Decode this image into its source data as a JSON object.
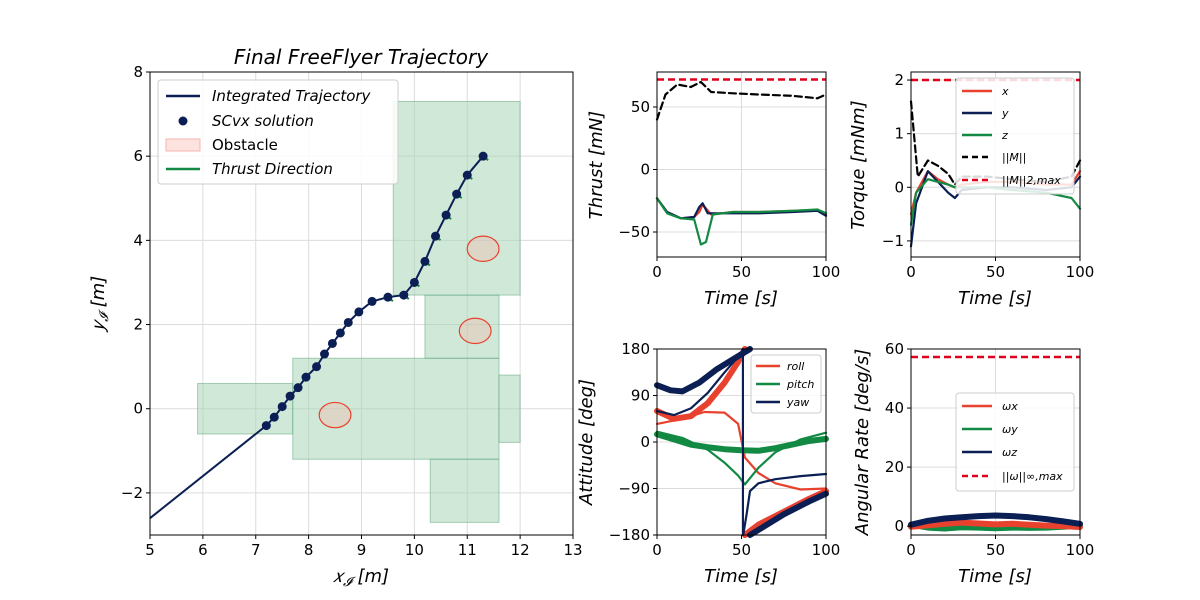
{
  "colors": {
    "navy": "#0b1f54",
    "red": "#e8412d",
    "green": "#138a43",
    "limit": "#e0001b",
    "black": "#000000",
    "obstacle_fill": "#a8d5b8",
    "obstacle_edge": "#5aa47a",
    "ellipse": "#e8412d"
  },
  "chart_data": [
    {
      "id": "trajectory",
      "type": "scatter",
      "title": "Final FreeFlyer Trajectory",
      "xlabel": "x_I [m]",
      "ylabel": "y_I [m]",
      "xlim": [
        5,
        13
      ],
      "ylim": [
        -3,
        8
      ],
      "xticks": [
        "5",
        "6",
        "7",
        "8",
        "9",
        "10",
        "11",
        "12",
        "13"
      ],
      "yticks": [
        "−2",
        "0",
        "2",
        "4",
        "6",
        "8"
      ],
      "grid": true,
      "legend": {
        "placement": "top-left",
        "entries": [
          "Integrated Trajectory",
          "SCvx solution",
          "Obstacle",
          "Thrust Direction"
        ]
      },
      "obstacles": [
        [
          5.9,
          7.7,
          -0.6,
          0.6
        ],
        [
          7.7,
          11.6,
          -1.2,
          1.2
        ],
        [
          10.3,
          11.6,
          -2.7,
          -1.2
        ],
        [
          10.2,
          11.6,
          1.2,
          2.7
        ],
        [
          9.6,
          12.0,
          2.7,
          7.3
        ],
        [
          11.6,
          12.0,
          -0.8,
          0.8
        ]
      ],
      "ellipses": [
        [
          8.5,
          -0.15,
          0.3,
          0.3
        ],
        [
          11.15,
          1.85,
          0.3,
          0.3
        ],
        [
          11.3,
          3.8,
          0.3,
          0.3
        ]
      ],
      "line": [
        [
          5.0,
          -2.6
        ],
        [
          7.2,
          -0.4
        ]
      ],
      "points": [
        [
          7.2,
          -0.4
        ],
        [
          7.35,
          -0.2
        ],
        [
          7.5,
          0.05
        ],
        [
          7.65,
          0.3
        ],
        [
          7.8,
          0.5
        ],
        [
          7.95,
          0.75
        ],
        [
          8.15,
          1.0
        ],
        [
          8.3,
          1.3
        ],
        [
          8.45,
          1.55
        ],
        [
          8.6,
          1.8
        ],
        [
          8.75,
          2.05
        ],
        [
          8.95,
          2.3
        ],
        [
          9.2,
          2.55
        ],
        [
          9.5,
          2.65
        ],
        [
          9.8,
          2.7
        ],
        [
          10.0,
          3.0
        ],
        [
          10.2,
          3.5
        ],
        [
          10.4,
          4.1
        ],
        [
          10.6,
          4.6
        ],
        [
          10.8,
          5.1
        ],
        [
          11.0,
          5.55
        ],
        [
          11.3,
          6.0
        ]
      ]
    },
    {
      "id": "thrust",
      "type": "line",
      "xlabel": "Time [s]",
      "ylabel": "Thrust [mN]",
      "xlim": [
        0,
        100
      ],
      "ylim": [
        -70,
        78
      ],
      "xticks": [
        "0",
        "50",
        "100"
      ],
      "yticks": [
        "−50",
        "0",
        "50"
      ],
      "grid": true,
      "limit": 72,
      "series": [
        {
          "style": "black-dashed",
          "points": [
            [
              0,
              40
            ],
            [
              5,
              60
            ],
            [
              12,
              68
            ],
            [
              20,
              66
            ],
            [
              26,
              70
            ],
            [
              32,
              62
            ],
            [
              45,
              61
            ],
            [
              60,
              60
            ],
            [
              80,
              59
            ],
            [
              95,
              57
            ],
            [
              100,
              60
            ]
          ]
        },
        {
          "style": "red",
          "points": [
            [
              0,
              -23
            ],
            [
              6,
              -34
            ],
            [
              14,
              -39
            ],
            [
              22,
              -38
            ],
            [
              25,
              -34
            ],
            [
              27,
              -28
            ],
            [
              32,
              -36
            ],
            [
              45,
              -34
            ],
            [
              60,
              -34
            ],
            [
              80,
              -33
            ],
            [
              95,
              -33
            ],
            [
              100,
              -36
            ]
          ]
        },
        {
          "style": "navy",
          "points": [
            [
              0,
              -23
            ],
            [
              6,
              -34
            ],
            [
              14,
              -39
            ],
            [
              22,
              -38
            ],
            [
              25,
              -30
            ],
            [
              27,
              -27
            ],
            [
              30,
              -35
            ],
            [
              45,
              -35
            ],
            [
              60,
              -35
            ],
            [
              80,
              -34
            ],
            [
              95,
              -33
            ],
            [
              100,
              -37
            ]
          ]
        },
        {
          "style": "green",
          "points": [
            [
              0,
              -23
            ],
            [
              6,
              -35
            ],
            [
              14,
              -39
            ],
            [
              22,
              -40
            ],
            [
              26,
              -60
            ],
            [
              29,
              -58
            ],
            [
              33,
              -36
            ],
            [
              45,
              -34
            ],
            [
              60,
              -34
            ],
            [
              80,
              -33
            ],
            [
              95,
              -32
            ],
            [
              100,
              -35
            ]
          ]
        }
      ]
    },
    {
      "id": "torque",
      "type": "line",
      "xlabel": "Time [s]",
      "ylabel": "Torque [mNm]",
      "xlim": [
        0,
        100
      ],
      "ylim": [
        -1.3,
        2.15
      ],
      "xticks": [
        "0",
        "50",
        "100"
      ],
      "yticks": [
        "−1",
        "0",
        "1",
        "2"
      ],
      "grid": true,
      "limit": 2.0,
      "legend": {
        "placement": "top-right",
        "entries": [
          "x",
          "y",
          "z",
          "||M||",
          "||M||2,max"
        ]
      },
      "series": [
        {
          "style": "black-dashed",
          "points": [
            [
              0,
              1.6
            ],
            [
              4,
              0.2
            ],
            [
              10,
              0.5
            ],
            [
              16,
              0.4
            ],
            [
              22,
              0.25
            ],
            [
              26,
              0.05
            ],
            [
              30,
              0.2
            ],
            [
              45,
              0.2
            ],
            [
              60,
              0.15
            ],
            [
              80,
              0.1
            ],
            [
              95,
              0.2
            ],
            [
              100,
              0.5
            ]
          ]
        },
        {
          "style": "red",
          "points": [
            [
              0,
              -0.5
            ],
            [
              3,
              -0.1
            ],
            [
              10,
              0.3
            ],
            [
              16,
              0.15
            ],
            [
              22,
              0.05
            ],
            [
              26,
              0.0
            ],
            [
              30,
              0.05
            ],
            [
              45,
              0.1
            ],
            [
              60,
              0.1
            ],
            [
              80,
              0.05
            ],
            [
              95,
              0.05
            ],
            [
              100,
              0.3
            ]
          ]
        },
        {
          "style": "navy",
          "points": [
            [
              0,
              -1.1
            ],
            [
              3,
              -0.3
            ],
            [
              10,
              0.3
            ],
            [
              16,
              0.1
            ],
            [
              22,
              -0.1
            ],
            [
              26,
              -0.2
            ],
            [
              30,
              -0.05
            ],
            [
              45,
              0.0
            ],
            [
              60,
              0.0
            ],
            [
              80,
              -0.05
            ],
            [
              95,
              0.0
            ],
            [
              100,
              0.2
            ]
          ]
        },
        {
          "style": "green",
          "points": [
            [
              0,
              -0.7
            ],
            [
              3,
              -0.1
            ],
            [
              10,
              0.15
            ],
            [
              16,
              0.1
            ],
            [
              22,
              0.05
            ],
            [
              26,
              0.0
            ],
            [
              30,
              0.0
            ],
            [
              45,
              0.0
            ],
            [
              60,
              -0.05
            ],
            [
              80,
              -0.1
            ],
            [
              95,
              -0.2
            ],
            [
              100,
              -0.4
            ]
          ]
        }
      ]
    },
    {
      "id": "attitude",
      "type": "line",
      "xlabel": "Time [s]",
      "ylabel": "Attitude [deg]",
      "xlim": [
        0,
        100
      ],
      "ylim": [
        -180,
        180
      ],
      "xticks": [
        "0",
        "50",
        "100"
      ],
      "yticks": [
        "−180",
        "−90",
        "0",
        "90",
        "180"
      ],
      "grid": true,
      "legend": {
        "placement": "top-right",
        "entries": [
          "roll",
          "pitch",
          "yaw"
        ]
      },
      "series": [
        {
          "style": "red",
          "marker": true,
          "points": [
            [
              0,
              60
            ],
            [
              10,
              45
            ],
            [
              20,
              50
            ],
            [
              30,
              75
            ],
            [
              40,
              115
            ],
            [
              48,
              155
            ],
            [
              52,
              180
            ]
          ]
        },
        {
          "style": "red",
          "marker": true,
          "points": [
            [
              52,
              -180
            ],
            [
              60,
              -160
            ],
            [
              75,
              -135
            ],
            [
              90,
              -110
            ],
            [
              100,
              -95
            ]
          ]
        },
        {
          "style": "red",
          "points": [
            [
              0,
              35
            ],
            [
              15,
              45
            ],
            [
              28,
              58
            ],
            [
              40,
              57
            ],
            [
              48,
              35
            ],
            [
              52,
              -30
            ],
            [
              60,
              -60
            ],
            [
              70,
              -80
            ],
            [
              85,
              -92
            ],
            [
              100,
              -90
            ]
          ]
        },
        {
          "style": "green",
          "marker": true,
          "points": [
            [
              0,
              15
            ],
            [
              10,
              5
            ],
            [
              20,
              -5
            ],
            [
              30,
              -10
            ],
            [
              40,
              -14
            ],
            [
              50,
              -16
            ],
            [
              60,
              -17
            ],
            [
              70,
              -12
            ],
            [
              80,
              -5
            ],
            [
              90,
              2
            ],
            [
              100,
              6
            ]
          ]
        },
        {
          "style": "green",
          "points": [
            [
              0,
              20
            ],
            [
              15,
              8
            ],
            [
              30,
              -15
            ],
            [
              40,
              -40
            ],
            [
              48,
              -65
            ],
            [
              52,
              -82
            ],
            [
              60,
              -50
            ],
            [
              70,
              -20
            ],
            [
              85,
              5
            ],
            [
              100,
              18
            ]
          ]
        },
        {
          "style": "navy",
          "marker": true,
          "points": [
            [
              0,
              110
            ],
            [
              8,
              100
            ],
            [
              15,
              98
            ],
            [
              25,
              115
            ],
            [
              35,
              140
            ],
            [
              45,
              160
            ],
            [
              55,
              180
            ]
          ]
        },
        {
          "style": "navy",
          "marker": true,
          "points": [
            [
              55,
              -180
            ],
            [
              65,
              -160
            ],
            [
              75,
              -140
            ],
            [
              90,
              -115
            ],
            [
              100,
              -100
            ]
          ]
        },
        {
          "style": "navy",
          "points": [
            [
              0,
              60
            ],
            [
              10,
              52
            ],
            [
              20,
              65
            ],
            [
              30,
              95
            ],
            [
              40,
              135
            ],
            [
              48,
              165
            ],
            [
              51,
              180
            ]
          ]
        },
        {
          "style": "navy",
          "points": [
            [
              51,
              -180
            ],
            [
              53,
              -140
            ],
            [
              55,
              -95
            ],
            [
              60,
              -80
            ],
            [
              70,
              -72
            ],
            [
              85,
              -66
            ],
            [
              100,
              -62
            ]
          ]
        }
      ]
    },
    {
      "id": "angular-rate",
      "type": "line",
      "xlabel": "Time [s]",
      "ylabel": "Angular Rate [deg/s]",
      "xlim": [
        0,
        100
      ],
      "ylim": [
        -3,
        60
      ],
      "xticks": [
        "0",
        "50",
        "100"
      ],
      "yticks": [
        "0",
        "20",
        "40",
        "60"
      ],
      "grid": true,
      "limit": 57.3,
      "legend": {
        "placement": "center-right",
        "entries": [
          "ωx",
          "ωy",
          "ωz",
          "||ω||∞,max"
        ]
      },
      "series": [
        {
          "style": "green",
          "marker": true,
          "points": [
            [
              0,
              0.5
            ],
            [
              10,
              -0.5
            ],
            [
              20,
              -0.8
            ],
            [
              30,
              -0.4
            ],
            [
              40,
              -0.5
            ],
            [
              50,
              -0.7
            ],
            [
              60,
              -0.5
            ],
            [
              70,
              -0.6
            ],
            [
              80,
              -0.5
            ],
            [
              90,
              -0.2
            ],
            [
              100,
              0.2
            ]
          ]
        },
        {
          "style": "red",
          "marker": true,
          "points": [
            [
              0,
              -0.2
            ],
            [
              10,
              0.3
            ],
            [
              20,
              0.8
            ],
            [
              30,
              1.2
            ],
            [
              40,
              0.9
            ],
            [
              50,
              0.6
            ],
            [
              60,
              0.8
            ],
            [
              70,
              0.5
            ],
            [
              80,
              0.2
            ],
            [
              90,
              0.0
            ],
            [
              100,
              -0.3
            ]
          ]
        },
        {
          "style": "navy",
          "marker": true,
          "points": [
            [
              0,
              0.5
            ],
            [
              10,
              1.8
            ],
            [
              20,
              2.6
            ],
            [
              30,
              3.0
            ],
            [
              40,
              3.4
            ],
            [
              50,
              3.6
            ],
            [
              60,
              3.4
            ],
            [
              70,
              3.0
            ],
            [
              80,
              2.4
            ],
            [
              90,
              1.6
            ],
            [
              100,
              0.8
            ]
          ]
        }
      ]
    }
  ]
}
